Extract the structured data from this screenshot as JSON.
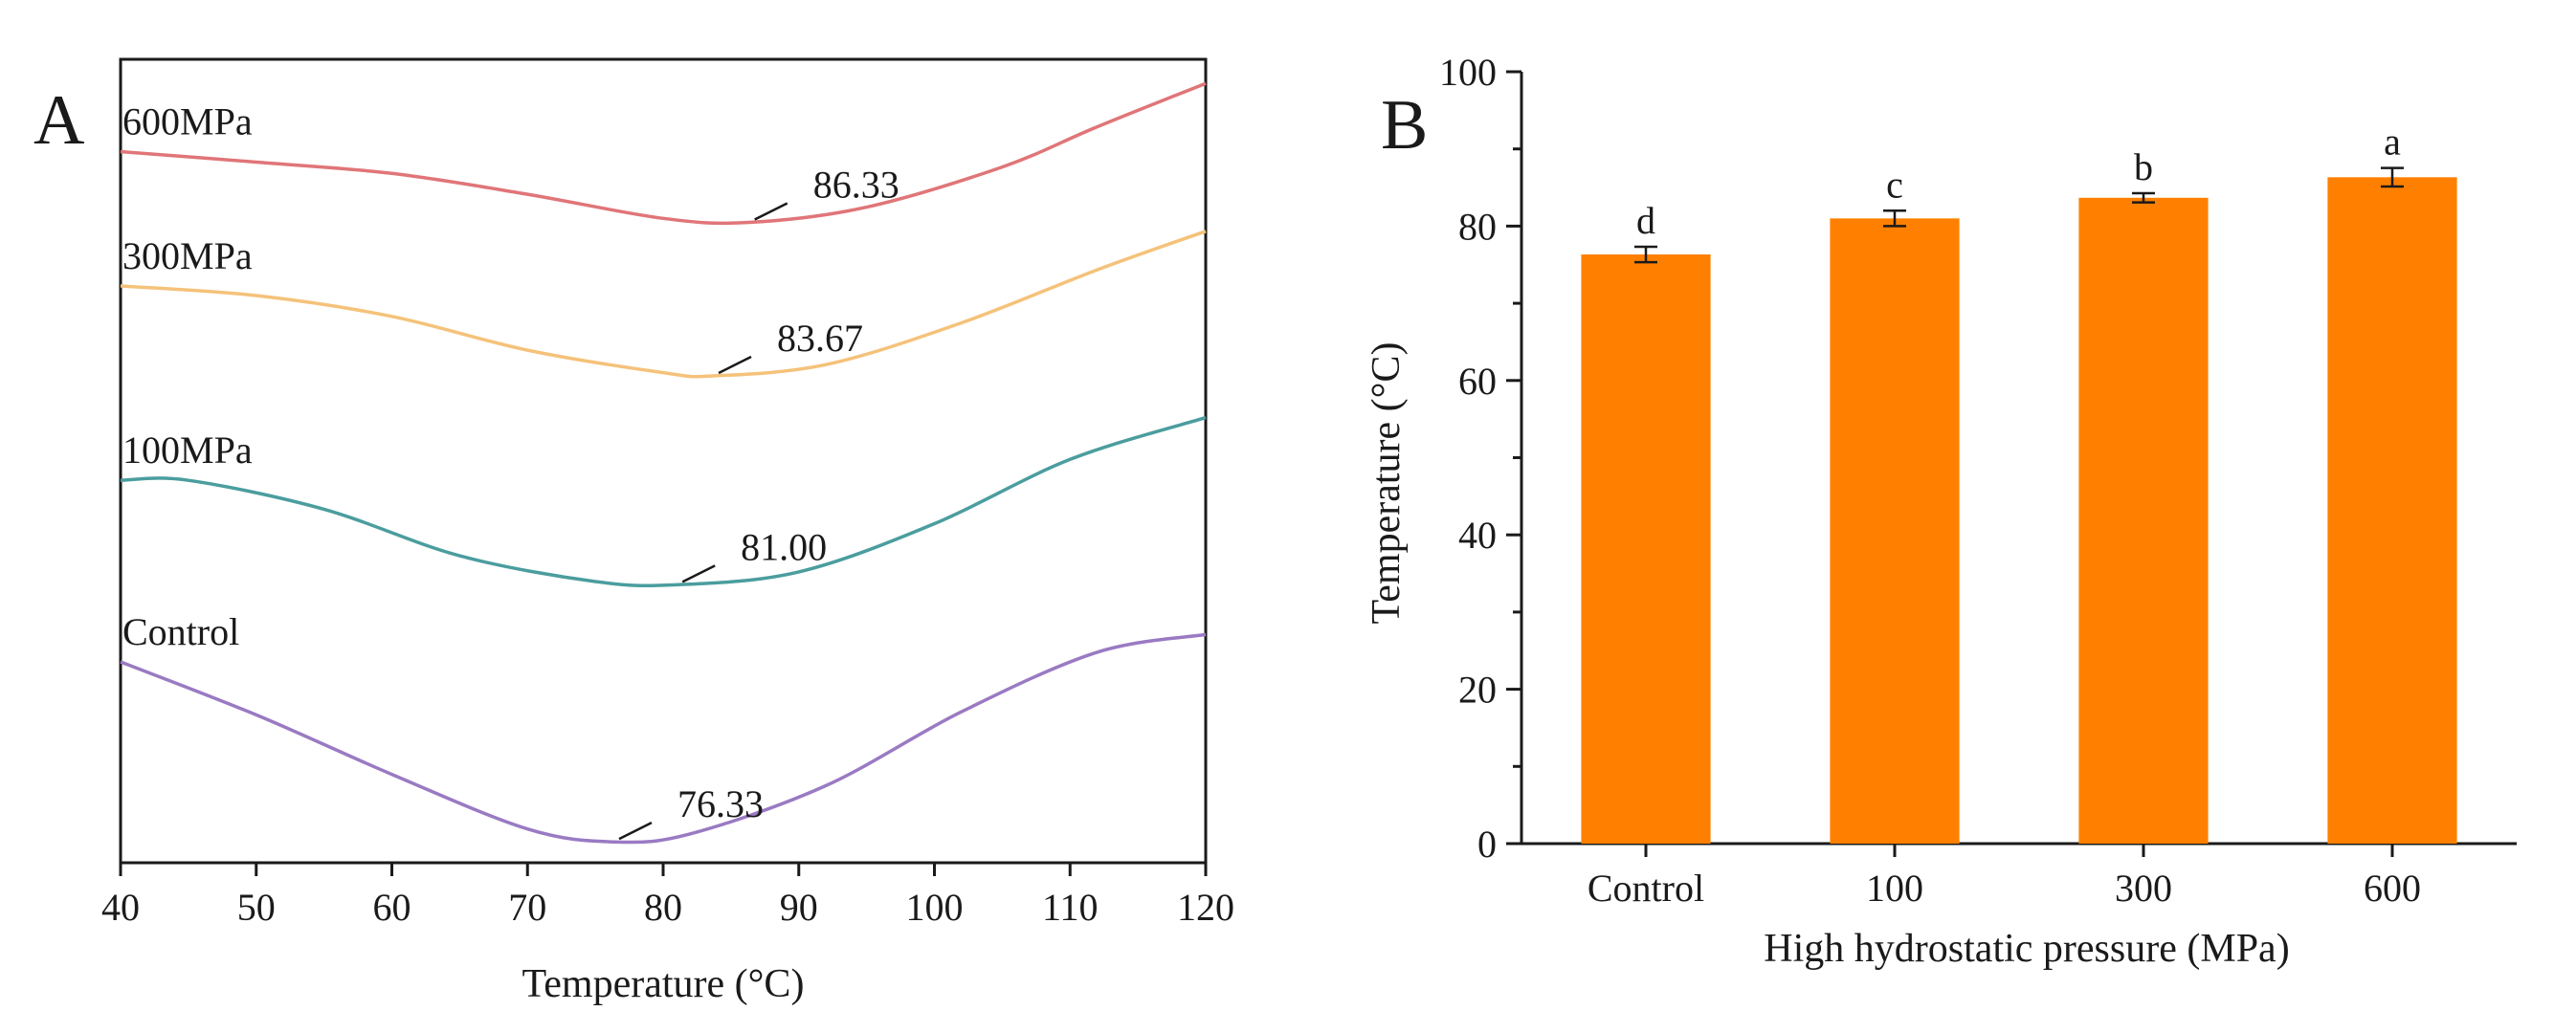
{
  "chart_data": [
    {
      "type": "line",
      "panel_label": "A",
      "title": "",
      "xlabel": "Temperature (°C)",
      "ylabel": "",
      "xlim": [
        40,
        120
      ],
      "ylim": [
        0,
        100
      ],
      "x_ticks": [
        40,
        50,
        60,
        70,
        80,
        90,
        100,
        110,
        120
      ],
      "y_axis_visible": false,
      "grid": false,
      "series": [
        {
          "name": "600MPa",
          "color": "#e07578",
          "x": [
            40,
            50,
            60,
            70,
            80,
            86.33,
            95,
            105,
            112,
            120
          ],
          "y": [
            88.5,
            87.2,
            85.8,
            83.2,
            80.2,
            79.7,
            81.6,
            86.6,
            91.6,
            97.0
          ],
          "peak": {
            "x": 86.33,
            "label": "86.33"
          }
        },
        {
          "name": "300MPa",
          "color": "#f5c27a",
          "x": [
            40,
            50,
            60,
            70,
            80,
            83.67,
            92,
            102,
            112,
            120
          ],
          "y": [
            71.8,
            70.6,
            68.0,
            63.8,
            61.0,
            60.6,
            62.0,
            67.2,
            73.8,
            78.6
          ],
          "peak": {
            "x": 83.67,
            "label": "83.67"
          }
        },
        {
          "name": "100MPa",
          "color": "#4b9d9e",
          "x": [
            40,
            45,
            55,
            65,
            75,
            81.0,
            90,
            100,
            110,
            120
          ],
          "y": [
            47.6,
            47.6,
            44.0,
            38.2,
            35.0,
            34.6,
            36.2,
            42.2,
            50.2,
            55.4
          ],
          "peak": {
            "x": 81.0,
            "label": "81.00"
          }
        },
        {
          "name": "Control",
          "color": "#9a7ac3",
          "x": [
            40,
            50,
            60,
            70,
            76.33,
            82,
            92,
            102,
            112,
            120
          ],
          "y": [
            25.0,
            18.4,
            11.0,
            4.2,
            2.6,
            3.6,
            9.6,
            18.8,
            26.2,
            28.4
          ],
          "peak": {
            "x": 76.33,
            "label": "76.33"
          }
        }
      ]
    },
    {
      "type": "bar",
      "panel_label": "B",
      "title": "",
      "xlabel": "High hydrostatic pressure (MPa)",
      "ylabel": "Temperature (°C)",
      "ylim": [
        0,
        100
      ],
      "y_ticks": [
        0,
        20,
        40,
        60,
        80,
        100
      ],
      "categories": [
        "Control",
        "100",
        "300",
        "600"
      ],
      "values": [
        76.33,
        81.0,
        83.67,
        86.33
      ],
      "errors": [
        1.0,
        1.0,
        0.6,
        1.2
      ],
      "significance_letters": [
        "d",
        "c",
        "b",
        "a"
      ],
      "bar_color": "#ff8000",
      "grid": false
    }
  ]
}
